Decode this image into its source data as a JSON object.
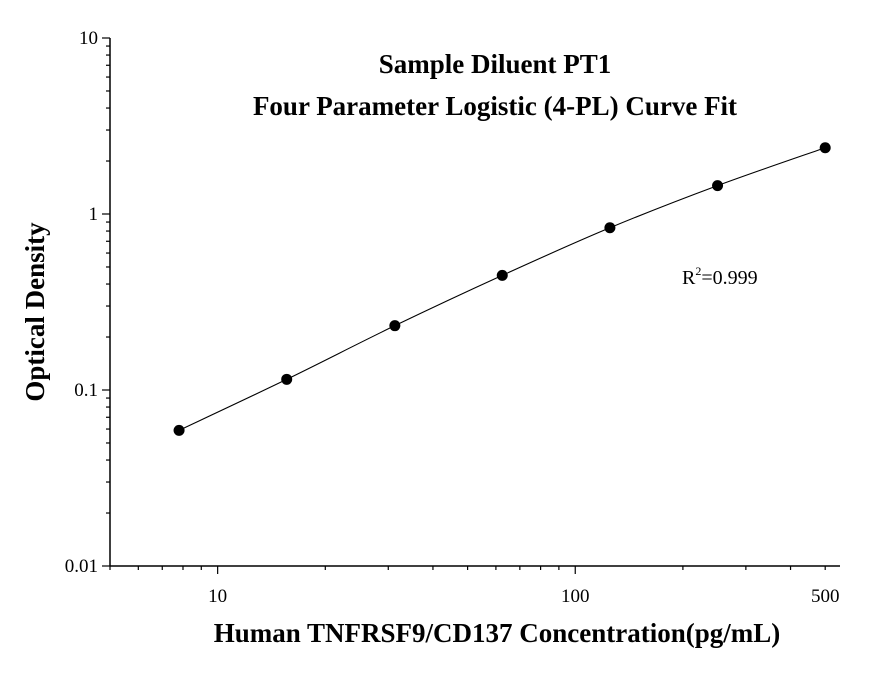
{
  "chart_data": {
    "type": "scatter",
    "title_lines": [
      "Sample Diluent PT1",
      "Four Parameter Logistic (4-PL) Curve Fit"
    ],
    "xlabel": "Human TNFRSF9/CD137 Concentration(pg/mL)",
    "ylabel": "Optical Density",
    "x_scale": "log",
    "y_scale": "log",
    "xlim": [
      5,
      550
    ],
    "ylim": [
      0.01,
      10
    ],
    "x_ticks": [
      {
        "value": 10,
        "label": "10"
      },
      {
        "value": 100,
        "label": "100"
      },
      {
        "value": 500,
        "label": "500"
      }
    ],
    "y_ticks": [
      {
        "value": 0.01,
        "label": "0.01"
      },
      {
        "value": 0.1,
        "label": "0.1"
      },
      {
        "value": 1,
        "label": "1"
      },
      {
        "value": 10,
        "label": "10"
      }
    ],
    "series": [
      {
        "x": [
          7.8,
          15.6,
          31.3,
          62.5,
          125,
          250,
          500
        ],
        "y": [
          0.059,
          0.115,
          0.232,
          0.448,
          0.835,
          1.45,
          2.38
        ]
      }
    ],
    "fit_curve": "4PL",
    "annotation": {
      "prefix": "R",
      "superscript": "2",
      "text": "=0.999"
    },
    "grid": false,
    "legend": "none",
    "colors": {
      "points": "#000000",
      "line": "#000000",
      "axes": "#000000"
    }
  }
}
